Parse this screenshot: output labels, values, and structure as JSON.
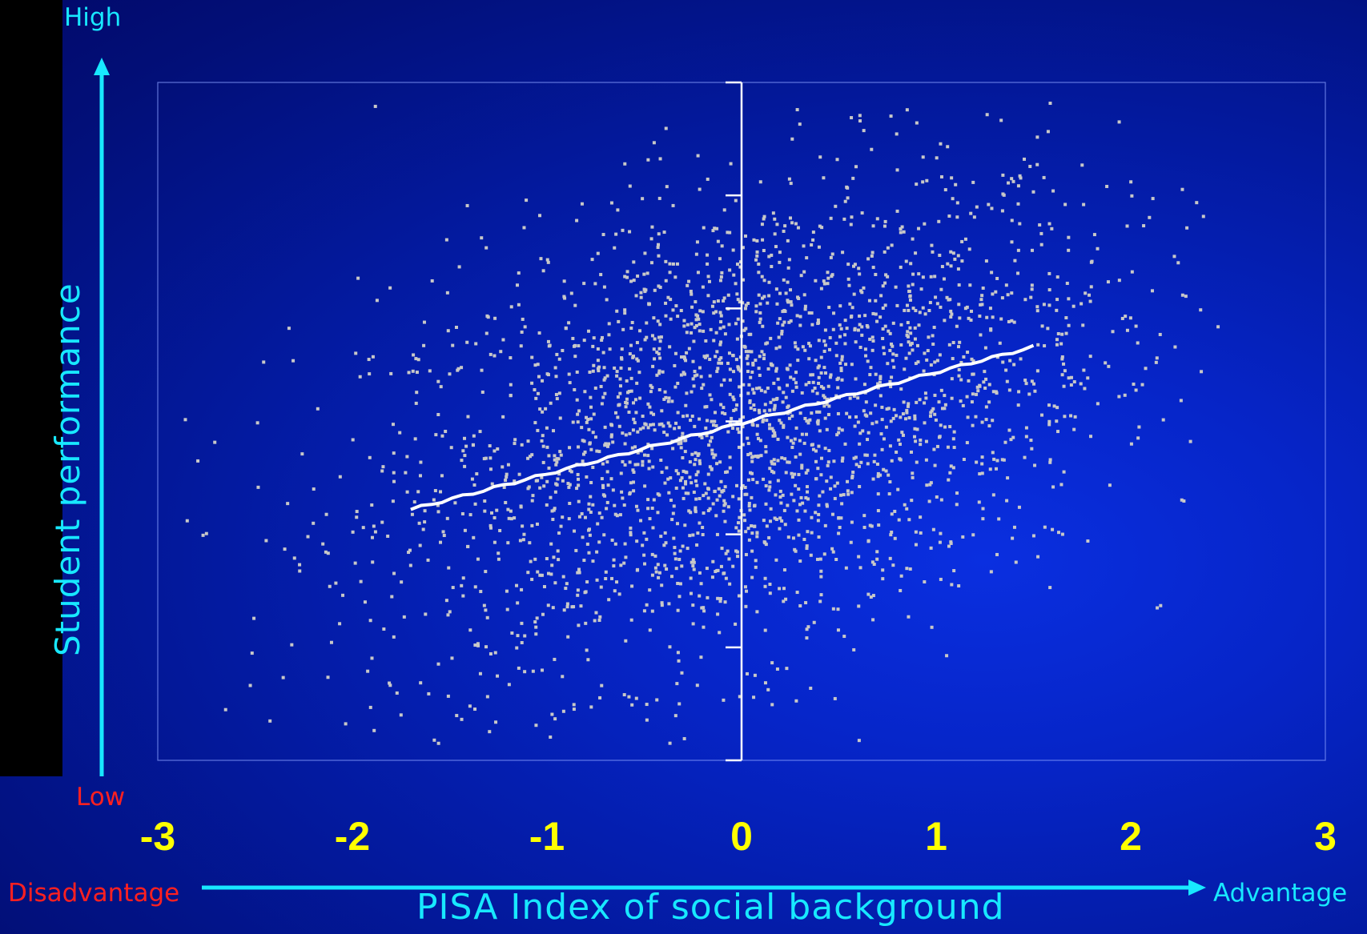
{
  "labels": {
    "high": "High",
    "low": "Low",
    "disadvantage": "Disadvantage",
    "advantage": "Advantage"
  },
  "colors": {
    "axis_arrow": "#18e8ff",
    "tick_label": "#ffff00",
    "points": "#c8c8c8",
    "trend": "#ffffff",
    "low_label": "#ff2020"
  },
  "chart_data": {
    "type": "scatter",
    "xlabel": "PISA Index of social background",
    "ylabel": "Student performance",
    "xlim": [
      -3,
      3
    ],
    "ylim": [
      0,
      1
    ],
    "x_ticks": [
      "-3",
      "-2",
      "-1",
      "0",
      "1",
      "2",
      "3"
    ],
    "grid": false,
    "points_description_count": 2600,
    "trend_line": {
      "x_start": -1.7,
      "x_end": 1.5,
      "y_start": 0.37,
      "y_end": 0.61
    }
  }
}
